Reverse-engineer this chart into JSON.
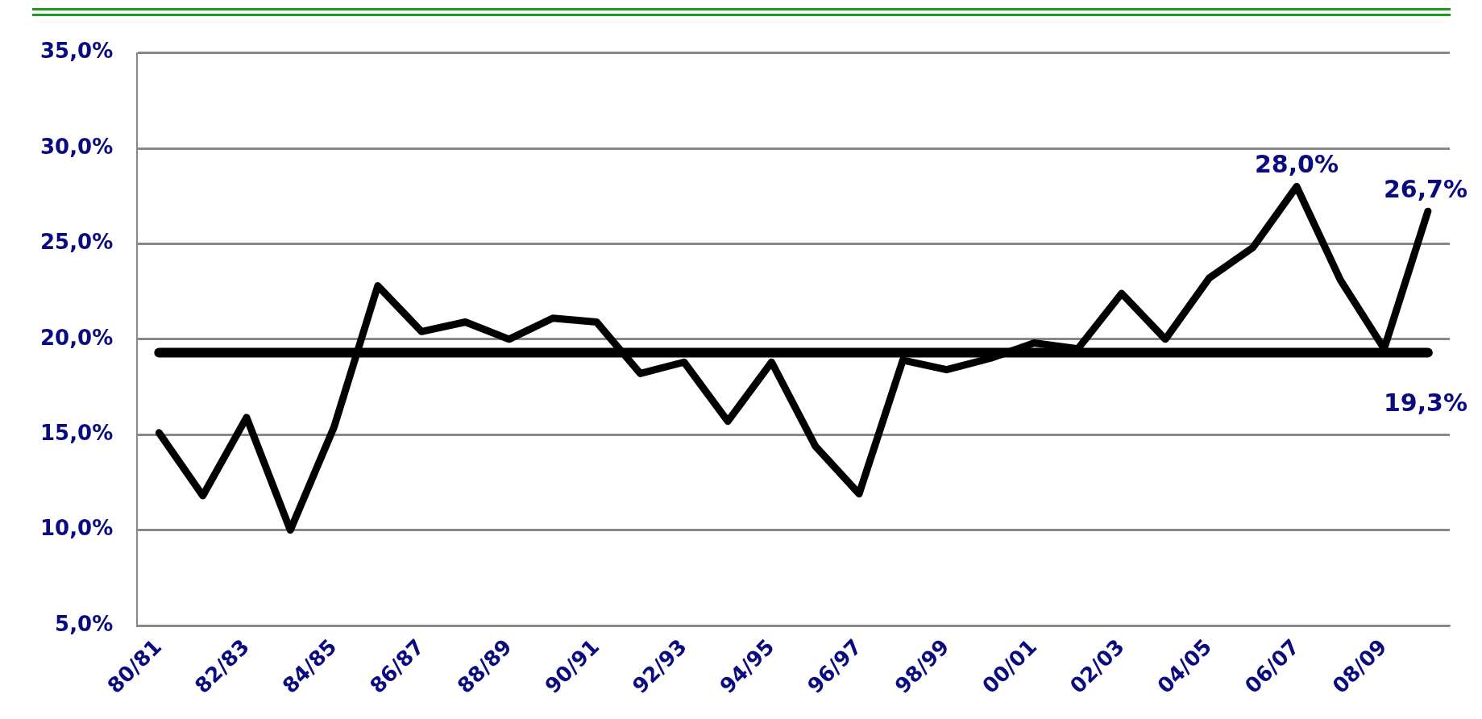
{
  "chart_data": {
    "type": "line",
    "categories": [
      "80/81",
      null,
      "82/83",
      null,
      "84/85",
      null,
      "86/87",
      null,
      "88/89",
      null,
      "90/91",
      null,
      "92/93",
      null,
      "94/95",
      null,
      "96/97",
      null,
      "98/99",
      null,
      "00/01",
      null,
      "02/03",
      null,
      "04/05",
      null,
      "06/07",
      null,
      "08/09",
      null
    ],
    "series": [
      {
        "color": "#000000",
        "values": [
          15.1,
          11.8,
          15.9,
          10.0,
          15.4,
          22.8,
          20.4,
          20.9,
          20.0,
          21.1,
          20.9,
          18.2,
          18.8,
          15.7,
          18.8,
          14.4,
          11.9,
          18.9,
          18.4,
          19.0,
          19.8,
          19.5,
          22.4,
          20.0,
          23.2,
          24.8,
          28.0,
          23.1,
          19.5,
          26.7
        ],
        "value_labels": [
          null,
          null,
          null,
          null,
          null,
          null,
          null,
          null,
          null,
          null,
          null,
          null,
          null,
          null,
          null,
          null,
          null,
          null,
          null,
          null,
          null,
          null,
          null,
          null,
          null,
          null,
          "28,0%",
          null,
          null,
          "26,7%"
        ]
      }
    ],
    "ylim": [
      5,
      35
    ],
    "yticks": [
      {
        "value": 5,
        "label": "5,0%"
      },
      {
        "value": 10,
        "label": "10,0%"
      },
      {
        "value": 15,
        "label": "15,0%"
      },
      {
        "value": 20,
        "label": "20,0%"
      },
      {
        "value": 25,
        "label": "25,0%"
      },
      {
        "value": 30,
        "label": "30,0%"
      },
      {
        "value": 35,
        "label": "35,0%"
      }
    ],
    "ref_lines": [
      {
        "axis": "y",
        "value": 19.3,
        "label": "19,3%",
        "color": "#000000"
      }
    ],
    "grid": "y",
    "legend": false,
    "marker": "none",
    "line_style": "solid"
  }
}
